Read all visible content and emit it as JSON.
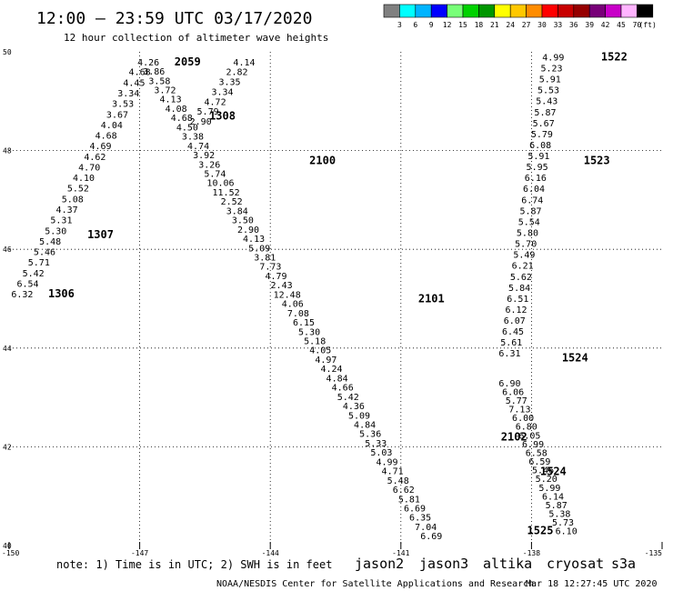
{
  "title": "12:00 – 23:59 UTC 03/17/2020",
  "subtitle": "12 hour collection of altimeter wave heights",
  "note": "note:  1) Time is in UTC; 2) SWH is in feet",
  "credit": "NOAA/NESDIS Center for Satellite Applications and Research",
  "timestamp": "Mar 18 12:27:45 UTC 2020",
  "satellites": [
    {
      "name": "jason2",
      "color": "#0000cc"
    },
    {
      "name": "jason3",
      "color": "#00a000"
    },
    {
      "name": "altika",
      "color": "#ffa500"
    },
    {
      "name": "cryosat",
      "color": "#dd0000"
    },
    {
      "name": "s3a",
      "color": "#cc0000"
    }
  ],
  "colorbar": {
    "unit": "(ft)",
    "bins": [
      {
        "label": "3",
        "color": "#808080"
      },
      {
        "label": "6",
        "color": "#00ffff"
      },
      {
        "label": "9",
        "color": "#00b4ff"
      },
      {
        "label": "12",
        "color": "#0000ff"
      },
      {
        "label": "15",
        "color": "#78ff78"
      },
      {
        "label": "18",
        "color": "#00d200"
      },
      {
        "label": "21",
        "color": "#009600"
      },
      {
        "label": "24",
        "color": "#ffff00"
      },
      {
        "label": "27",
        "color": "#ffc800"
      },
      {
        "label": "30",
        "color": "#ff8c00"
      },
      {
        "label": "33",
        "color": "#ff0000"
      },
      {
        "label": "36",
        "color": "#c80000"
      },
      {
        "label": "39",
        "color": "#960000"
      },
      {
        "label": "42",
        "color": "#780078"
      },
      {
        "label": "45",
        "color": "#c800c8"
      },
      {
        "label": "70",
        "color": "#ffb4ff"
      },
      {
        "label": "",
        "color": "#000000"
      }
    ]
  },
  "chart_data": {
    "type": "scatter",
    "xlim": [
      -150,
      -135
    ],
    "ylim": [
      40,
      50
    ],
    "x_ticks": [
      -150,
      -147,
      -144,
      -141,
      -138,
      -135
    ],
    "x_tick_labels": [
      "-150",
      "-147",
      "-144",
      "-141",
      "-138",
      "-135"
    ],
    "y_ticks": [
      40,
      42,
      44,
      46,
      48,
      50
    ],
    "y_tick_labels": [
      "40",
      "42",
      "44",
      "46",
      "48",
      "50"
    ],
    "grid": true,
    "tracks": [
      {
        "name": "track-a",
        "start": [
          -149.7,
          45.1
        ],
        "end": [
          -147.0,
          49.6
        ],
        "values": [
          "6.32",
          "6.54",
          "5.42",
          "5.71",
          "5.46",
          "5.48",
          "5.30",
          "5.31",
          "4.37",
          "5.08",
          "5.52",
          "4.10",
          "4.70",
          "4.62",
          "4.69",
          "4.68",
          "4.04",
          "3.67",
          "3.53",
          "3.34",
          "4.45",
          "4.68"
        ],
        "colors": [
          "#00ffff"
        ]
      },
      {
        "name": "track-b",
        "start": [
          -146.8,
          49.8
        ],
        "end": [
          -140.3,
          40.2
        ],
        "values": [
          "4.26",
          "3.86",
          "3.58",
          "3.72",
          "4.13",
          "4.08",
          "4.68",
          "4.50",
          "3.38",
          "4.74",
          "3.92",
          "3.26",
          "5.74",
          "10.06",
          "11.52",
          "2.52",
          "3.84",
          "3.50",
          "2.90",
          "4.13",
          "5.09",
          "3.81",
          "7.73",
          "4.79",
          "2.43",
          "12.48",
          "4.06",
          "7.08",
          "6.15",
          "5.30",
          "5.18",
          "4.05",
          "4.97",
          "4.24",
          "4.84",
          "4.66",
          "5.42",
          "4.36",
          "5.09",
          "4.84",
          "5.36",
          "5.33",
          "5.03",
          "4.99",
          "4.71",
          "5.48",
          "6.62",
          "5.81",
          "6.69",
          "6.35",
          "7.04",
          "6.69"
        ],
        "colors": [
          "#00ffff",
          "#00ffff",
          "#00ffff",
          "#00ffff",
          "#00ffff",
          "#00ffff",
          "#00ffff",
          "#00ffff",
          "#00ffff",
          "#00ffff",
          "#00ffff",
          "#00ffff",
          "#00ffff",
          "#0000ff",
          "#0000ff",
          "#808080",
          "#00ffff",
          "#00ffff",
          "#808080",
          "#00ffff",
          "#00ffff",
          "#00ffff",
          "#00ffff",
          "#00ffff",
          "#808080",
          "#78ff78",
          "#00ffff"
        ]
      },
      {
        "name": "track-c",
        "start": [
          -144.6,
          49.8
        ],
        "end": [
          -145.6,
          48.6
        ],
        "values": [
          "4.14",
          "2.82",
          "3.35",
          "3.34",
          "4.72",
          "5.79",
          "2.90"
        ],
        "colors": [
          "#00ffff",
          "#808080",
          "#00ffff",
          "#00ffff",
          "#00ffff",
          "#00ffff",
          "#808080"
        ]
      },
      {
        "name": "track-d",
        "start": [
          -137.5,
          49.9
        ],
        "end": [
          -138.5,
          43.9
        ],
        "values": [
          "4.99",
          "5.23",
          "5.91",
          "5.53",
          "5.43",
          "5.87",
          "5.67",
          "5.79",
          "6.08",
          "5.91",
          "5.95",
          "6.16",
          "6.04",
          "6.74",
          "5.87",
          "5.54",
          "5.80",
          "5.70",
          "5.49",
          "6.21",
          "5.62",
          "5.84",
          "6.51",
          "6.12",
          "6.07",
          "6.45",
          "5.61",
          "6.31"
        ],
        "colors": [
          "#00ffff"
        ]
      },
      {
        "name": "track-e",
        "start": [
          -138.5,
          43.3
        ],
        "end": [
          -137.2,
          40.3
        ],
        "values": [
          "6.90",
          "6.06",
          "5.77",
          "7.13",
          "6.00",
          "6.80",
          "6.05",
          "6.99",
          "6.58",
          "6.59",
          "5.46",
          "5.20",
          "5.99",
          "6.14",
          "5.87",
          "5.38",
          "5.73",
          "6.10"
        ],
        "colors": [
          "#00ffff"
        ]
      }
    ],
    "time_labels": [
      {
        "text": "1306",
        "lon": -148.8,
        "lat": 45.1,
        "color": "#009600"
      },
      {
        "text": "1307",
        "lon": -147.9,
        "lat": 46.3,
        "color": "#009600"
      },
      {
        "text": "2059",
        "lon": -145.9,
        "lat": 49.8,
        "color": "#009600"
      },
      {
        "text": "1308",
        "lon": -145.1,
        "lat": 48.7,
        "color": "#009600"
      },
      {
        "text": "2100",
        "lon": -142.8,
        "lat": 47.8,
        "color": "#009600"
      },
      {
        "text": "2101",
        "lon": -140.3,
        "lat": 45.0,
        "color": "#009600"
      },
      {
        "text": "2102",
        "lon": -138.4,
        "lat": 42.2,
        "color": "#009600"
      },
      {
        "text": "1522",
        "lon": -136.1,
        "lat": 49.9,
        "color": "#dd0000"
      },
      {
        "text": "1523",
        "lon": -136.5,
        "lat": 47.8,
        "color": "#dd0000"
      },
      {
        "text": "1524",
        "lon": -137.0,
        "lat": 43.8,
        "color": "#dd0000"
      },
      {
        "text": "1524",
        "lon": -137.5,
        "lat": 41.5,
        "color": "#dd0000"
      },
      {
        "text": "1525",
        "lon": -137.8,
        "lat": 40.3,
        "color": "#dd0000"
      }
    ]
  }
}
